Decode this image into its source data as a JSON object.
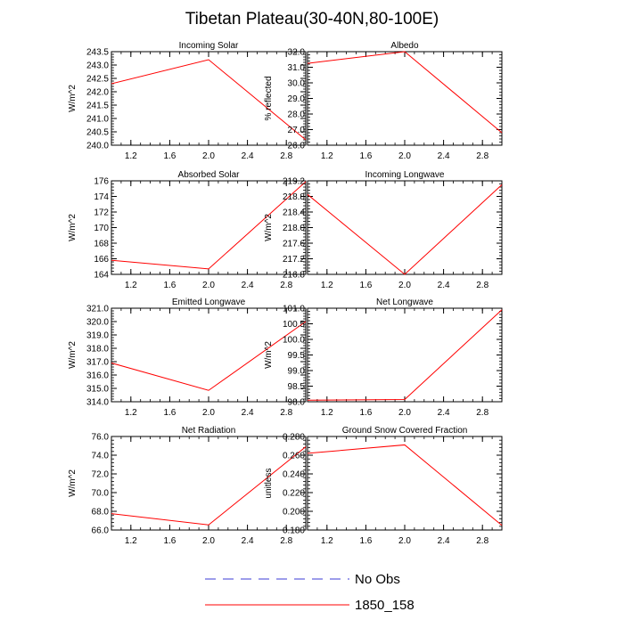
{
  "figure": {
    "title": "Tibetan Plateau(30-40N,80-100E)"
  },
  "legend": [
    {
      "label": "No Obs",
      "color": "#3b3bd6",
      "dash": true
    },
    {
      "label": "1850_158",
      "color": "#ff0000",
      "dash": false
    }
  ],
  "colors": {
    "line": "#ff0000",
    "axis": "#000000"
  },
  "chart_data": [
    {
      "type": "line",
      "title": "Incoming Solar",
      "xlabel": "",
      "ylabel": "W/m^2",
      "xlim": [
        1,
        3
      ],
      "ylim": [
        240.0,
        243.5
      ],
      "xticks": [
        "1.2",
        "1.6",
        "2.0",
        "2.4",
        "2.8"
      ],
      "yticks": [
        "240.0",
        "240.5",
        "241.0",
        "241.5",
        "242.0",
        "242.5",
        "243.0",
        "243.5"
      ],
      "series": [
        {
          "x": [
            1,
            2,
            3
          ],
          "y": [
            242.3,
            243.2,
            240.2
          ]
        }
      ]
    },
    {
      "type": "line",
      "title": "Albedo",
      "xlabel": "",
      "ylabel": "% reflected",
      "xlim": [
        1,
        3
      ],
      "ylim": [
        26.0,
        32.0
      ],
      "xticks": [
        "1.2",
        "1.6",
        "2.0",
        "2.4",
        "2.8"
      ],
      "yticks": [
        "26.0",
        "27.0",
        "28.0",
        "29.0",
        "30.0",
        "31.0",
        "32.0"
      ],
      "series": [
        {
          "x": [
            1,
            2,
            3
          ],
          "y": [
            31.25,
            32.0,
            26.8
          ]
        }
      ]
    },
    {
      "type": "line",
      "title": "Absorbed Solar",
      "xlabel": "",
      "ylabel": "W/m^2",
      "xlim": [
        1,
        3
      ],
      "ylim": [
        164,
        176
      ],
      "xticks": [
        "1.2",
        "1.6",
        "2.0",
        "2.4",
        "2.8"
      ],
      "yticks": [
        "164",
        "166",
        "168",
        "170",
        "172",
        "174",
        "176"
      ],
      "series": [
        {
          "x": [
            1,
            2,
            3
          ],
          "y": [
            165.8,
            164.7,
            175.9
          ]
        }
      ]
    },
    {
      "type": "line",
      "title": "Incoming Longwave",
      "xlabel": "",
      "ylabel": "W/m^2",
      "xlim": [
        1,
        3
      ],
      "ylim": [
        216.8,
        219.2
      ],
      "xticks": [
        "1.2",
        "1.6",
        "2.0",
        "2.4",
        "2.8"
      ],
      "yticks": [
        "216.8",
        "217.2",
        "217.6",
        "218.0",
        "218.4",
        "218.8",
        "219.2"
      ],
      "series": [
        {
          "x": [
            1,
            2,
            3
          ],
          "y": [
            218.85,
            216.8,
            219.1
          ]
        }
      ]
    },
    {
      "type": "line",
      "title": "Emitted Longwave",
      "xlabel": "",
      "ylabel": "W/m^2",
      "xlim": [
        1,
        3
      ],
      "ylim": [
        314.0,
        321.0
      ],
      "xticks": [
        "1.2",
        "1.6",
        "2.0",
        "2.4",
        "2.8"
      ],
      "yticks": [
        "314.0",
        "315.0",
        "316.0",
        "317.0",
        "318.0",
        "319.0",
        "320.0",
        "321.0"
      ],
      "series": [
        {
          "x": [
            1,
            2,
            3
          ],
          "y": [
            316.9,
            314.85,
            320.0
          ]
        }
      ]
    },
    {
      "type": "line",
      "title": "Net Longwave",
      "xlabel": "",
      "ylabel": "W/m^2",
      "xlim": [
        1,
        3
      ],
      "ylim": [
        98.0,
        101.0
      ],
      "xticks": [
        "1.2",
        "1.6",
        "2.0",
        "2.4",
        "2.8"
      ],
      "yticks": [
        "98.0",
        "98.5",
        "99.0",
        "99.5",
        "100.0",
        "100.5",
        "101.0"
      ],
      "series": [
        {
          "x": [
            1,
            2,
            3
          ],
          "y": [
            98.05,
            98.07,
            100.95
          ]
        }
      ]
    },
    {
      "type": "line",
      "title": "Net Radiation",
      "xlabel": "",
      "ylabel": "W/m^2",
      "xlim": [
        1,
        3
      ],
      "ylim": [
        66.0,
        76.0
      ],
      "xticks": [
        "1.2",
        "1.6",
        "2.0",
        "2.4",
        "2.8"
      ],
      "yticks": [
        "66.0",
        "68.0",
        "70.0",
        "72.0",
        "74.0",
        "76.0"
      ],
      "series": [
        {
          "x": [
            1,
            2,
            3
          ],
          "y": [
            67.75,
            66.55,
            74.9
          ]
        }
      ]
    },
    {
      "type": "line",
      "title": "Ground Snow Covered Fraction",
      "xlabel": "",
      "ylabel": "unitless",
      "xlim": [
        1,
        3
      ],
      "ylim": [
        0.18,
        0.28
      ],
      "xticks": [
        "1.2",
        "1.6",
        "2.0",
        "2.4",
        "2.8"
      ],
      "yticks": [
        "0.180",
        "0.200",
        "0.220",
        "0.240",
        "0.260",
        "0.280"
      ],
      "series": [
        {
          "x": [
            1,
            2,
            3
          ],
          "y": [
            0.262,
            0.271,
            0.185
          ]
        }
      ]
    }
  ]
}
